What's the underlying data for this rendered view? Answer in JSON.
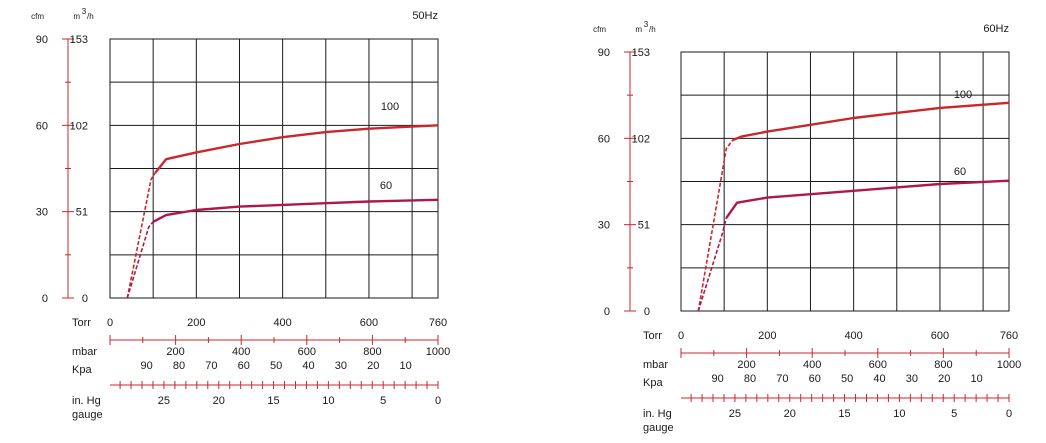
{
  "chart_data": [
    {
      "type": "line",
      "title": "50Hz",
      "colors": {
        "curve": "#c8282d",
        "curve_low": "#b01848",
        "scale": "#c8282d",
        "grid": "#1a1a1a"
      },
      "left_units": [
        "cfm",
        "m",
        "3",
        "/h"
      ],
      "y_cfm_ticks": [
        "90",
        "60",
        "30",
        "0"
      ],
      "y_m3h_ticks": [
        "153",
        "102",
        "51",
        "0"
      ],
      "ylim_m3h": [
        0,
        153
      ],
      "xlim_torr": [
        0,
        760
      ],
      "torr_label": "Torr",
      "torr_ticks": [
        {
          "v": 0,
          "label": "0"
        },
        {
          "v": 200,
          "label": "200"
        },
        {
          "v": 400,
          "label": "400"
        },
        {
          "v": 600,
          "label": "600"
        },
        {
          "v": 760,
          "label": "760"
        }
      ],
      "mbar_label": "mbar",
      "mbar_ticks": [
        {
          "v": 200,
          "label": "200"
        },
        {
          "v": 400,
          "label": "400"
        },
        {
          "v": 600,
          "label": "600"
        },
        {
          "v": 800,
          "label": "800"
        },
        {
          "v": 1000,
          "label": "1000"
        }
      ],
      "kpa_label": "Kpa",
      "kpa_ticks": [
        {
          "v": 90,
          "label": "90"
        },
        {
          "v": 80,
          "label": "80"
        },
        {
          "v": 70,
          "label": "70"
        },
        {
          "v": 60,
          "label": "60"
        },
        {
          "v": 50,
          "label": "50"
        },
        {
          "v": 40,
          "label": "40"
        },
        {
          "v": 30,
          "label": "30"
        },
        {
          "v": 20,
          "label": "20"
        },
        {
          "v": 10,
          "label": "10"
        }
      ],
      "inhg_label": [
        "in. Hg",
        "gauge"
      ],
      "inhg_ticks": [
        {
          "v": 25,
          "label": "25"
        },
        {
          "v": 20,
          "label": "20"
        },
        {
          "v": 15,
          "label": "15"
        },
        {
          "v": 10,
          "label": "10"
        },
        {
          "v": 5,
          "label": "5"
        },
        {
          "v": 0,
          "label": "0"
        }
      ],
      "series": [
        {
          "name": "100",
          "dashed": [
            [
              40,
              0
            ],
            [
              95,
              70
            ],
            [
              105,
              74
            ]
          ],
          "values": [
            [
              105,
              74
            ],
            [
              130,
              82
            ],
            [
              200,
              86
            ],
            [
              300,
              91
            ],
            [
              400,
              95
            ],
            [
              500,
              98
            ],
            [
              600,
              100
            ],
            [
              760,
              102
            ]
          ]
        },
        {
          "name": "60",
          "dashed": [
            [
              40,
              0
            ],
            [
              90,
              42
            ],
            [
              100,
              45
            ]
          ],
          "values": [
            [
              100,
              45
            ],
            [
              130,
              49
            ],
            [
              200,
              52
            ],
            [
              300,
              54
            ],
            [
              400,
              55
            ],
            [
              500,
              56
            ],
            [
              600,
              57
            ],
            [
              760,
              58
            ]
          ]
        }
      ]
    },
    {
      "type": "line",
      "title": "60Hz",
      "colors": {
        "curve": "#c8282d",
        "curve_low": "#b01848",
        "scale": "#c8282d",
        "grid": "#1a1a1a"
      },
      "left_units": [
        "cfm",
        "m",
        "3",
        "/h"
      ],
      "y_cfm_ticks": [
        "90",
        "60",
        "30",
        "0"
      ],
      "y_m3h_ticks": [
        "153",
        "102",
        "51",
        "0"
      ],
      "ylim_m3h": [
        0,
        153
      ],
      "xlim_torr": [
        0,
        760
      ],
      "torr_label": "Torr",
      "torr_ticks": [
        {
          "v": 0,
          "label": "0"
        },
        {
          "v": 200,
          "label": "200"
        },
        {
          "v": 400,
          "label": "400"
        },
        {
          "v": 600,
          "label": "600"
        },
        {
          "v": 760,
          "label": "760"
        }
      ],
      "mbar_label": "mbar",
      "mbar_ticks": [
        {
          "v": 200,
          "label": "200"
        },
        {
          "v": 400,
          "label": "400"
        },
        {
          "v": 600,
          "label": "600"
        },
        {
          "v": 800,
          "label": "800"
        },
        {
          "v": 1000,
          "label": "1000"
        }
      ],
      "kpa_label": "Kpa",
      "kpa_ticks": [
        {
          "v": 90,
          "label": "90"
        },
        {
          "v": 80,
          "label": "80"
        },
        {
          "v": 70,
          "label": "70"
        },
        {
          "v": 60,
          "label": "60"
        },
        {
          "v": 50,
          "label": "50"
        },
        {
          "v": 40,
          "label": "40"
        },
        {
          "v": 30,
          "label": "30"
        },
        {
          "v": 20,
          "label": "20"
        },
        {
          "v": 10,
          "label": "10"
        }
      ],
      "inhg_label": [
        "in. Hg",
        "gauge"
      ],
      "inhg_ticks": [
        {
          "v": 25,
          "label": "25"
        },
        {
          "v": 20,
          "label": "20"
        },
        {
          "v": 15,
          "label": "15"
        },
        {
          "v": 10,
          "label": "10"
        },
        {
          "v": 5,
          "label": "5"
        },
        {
          "v": 0,
          "label": "0"
        }
      ],
      "series": [
        {
          "name": "100",
          "dashed": [
            [
              40,
              0
            ],
            [
              105,
              96
            ],
            [
              120,
              101
            ]
          ],
          "values": [
            [
              120,
              101
            ],
            [
              140,
              103
            ],
            [
              200,
              106
            ],
            [
              300,
              110
            ],
            [
              400,
              114
            ],
            [
              500,
              117
            ],
            [
              600,
              120
            ],
            [
              760,
              123
            ]
          ]
        },
        {
          "name": "60",
          "dashed": [
            [
              40,
              0
            ],
            [
              95,
              45
            ],
            [
              105,
              55
            ]
          ],
          "values": [
            [
              105,
              55
            ],
            [
              130,
              64
            ],
            [
              200,
              67
            ],
            [
              300,
              69
            ],
            [
              400,
              71
            ],
            [
              500,
              73
            ],
            [
              600,
              75
            ],
            [
              760,
              77
            ]
          ]
        }
      ]
    }
  ]
}
